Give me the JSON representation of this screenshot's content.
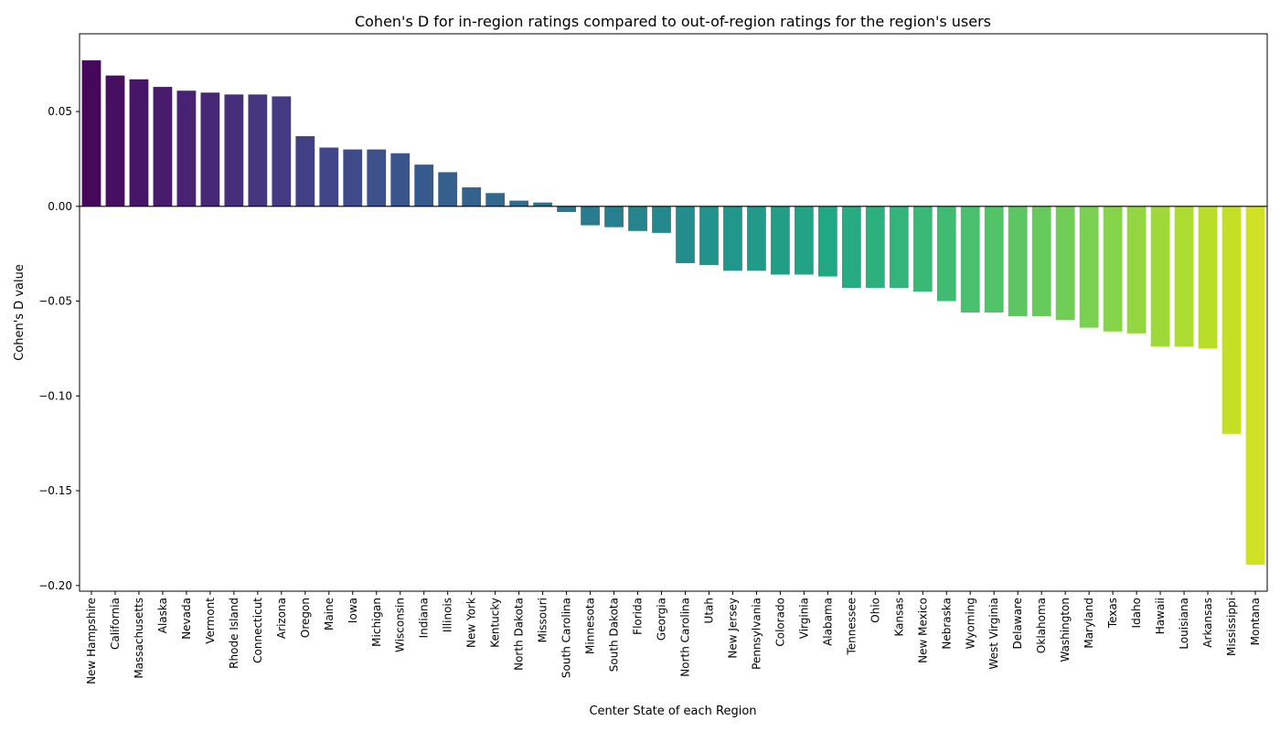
{
  "chart_data": {
    "type": "bar",
    "title": "Cohen's D for in-region ratings compared to out-of-region ratings for the region's users",
    "xlabel": "Center State of each Region",
    "ylabel": "Cohen's D value",
    "ylim": [
      -0.203,
      0.091
    ],
    "yticks": [
      "0.05",
      "0.00",
      "−0.05",
      "−0.10",
      "−0.15",
      "−0.20"
    ],
    "ytick_values": [
      0.05,
      0.0,
      -0.05,
      -0.1,
      -0.15,
      -0.2
    ],
    "grid": false,
    "colormap": "viridis",
    "categories": [
      "New Hampshire",
      "California",
      "Massachusetts",
      "Alaska",
      "Nevada",
      "Vermont",
      "Rhode Island",
      "Connecticut",
      "Arizona",
      "Oregon",
      "Maine",
      "Iowa",
      "Michigan",
      "Wisconsin",
      "Indiana",
      "Illinois",
      "New York",
      "Kentucky",
      "North Dakota",
      "Missouri",
      "South Carolina",
      "Minnesota",
      "South Dakota",
      "Florida",
      "Georgia",
      "North Carolina",
      "Utah",
      "New Jersey",
      "Pennsylvania",
      "Colorado",
      "Virginia",
      "Alabama",
      "Tennessee",
      "Ohio",
      "Kansas",
      "New Mexico",
      "Nebraska",
      "Wyoming",
      "West Virginia",
      "Delaware",
      "Oklahoma",
      "Washington",
      "Maryland",
      "Texas",
      "Idaho",
      "Hawaii",
      "Louisiana",
      "Arkansas",
      "Mississippi",
      "Montana"
    ],
    "values": [
      0.077,
      0.069,
      0.067,
      0.063,
      0.061,
      0.06,
      0.059,
      0.059,
      0.058,
      0.037,
      0.031,
      0.03,
      0.03,
      0.028,
      0.022,
      0.018,
      0.01,
      0.007,
      0.003,
      0.002,
      -0.003,
      -0.01,
      -0.011,
      -0.013,
      -0.014,
      -0.03,
      -0.031,
      -0.034,
      -0.034,
      -0.036,
      -0.036,
      -0.037,
      -0.043,
      -0.043,
      -0.043,
      -0.045,
      -0.05,
      -0.056,
      -0.056,
      -0.058,
      -0.058,
      -0.06,
      -0.064,
      -0.066,
      -0.067,
      -0.074,
      -0.074,
      -0.075,
      -0.12,
      -0.189
    ]
  }
}
